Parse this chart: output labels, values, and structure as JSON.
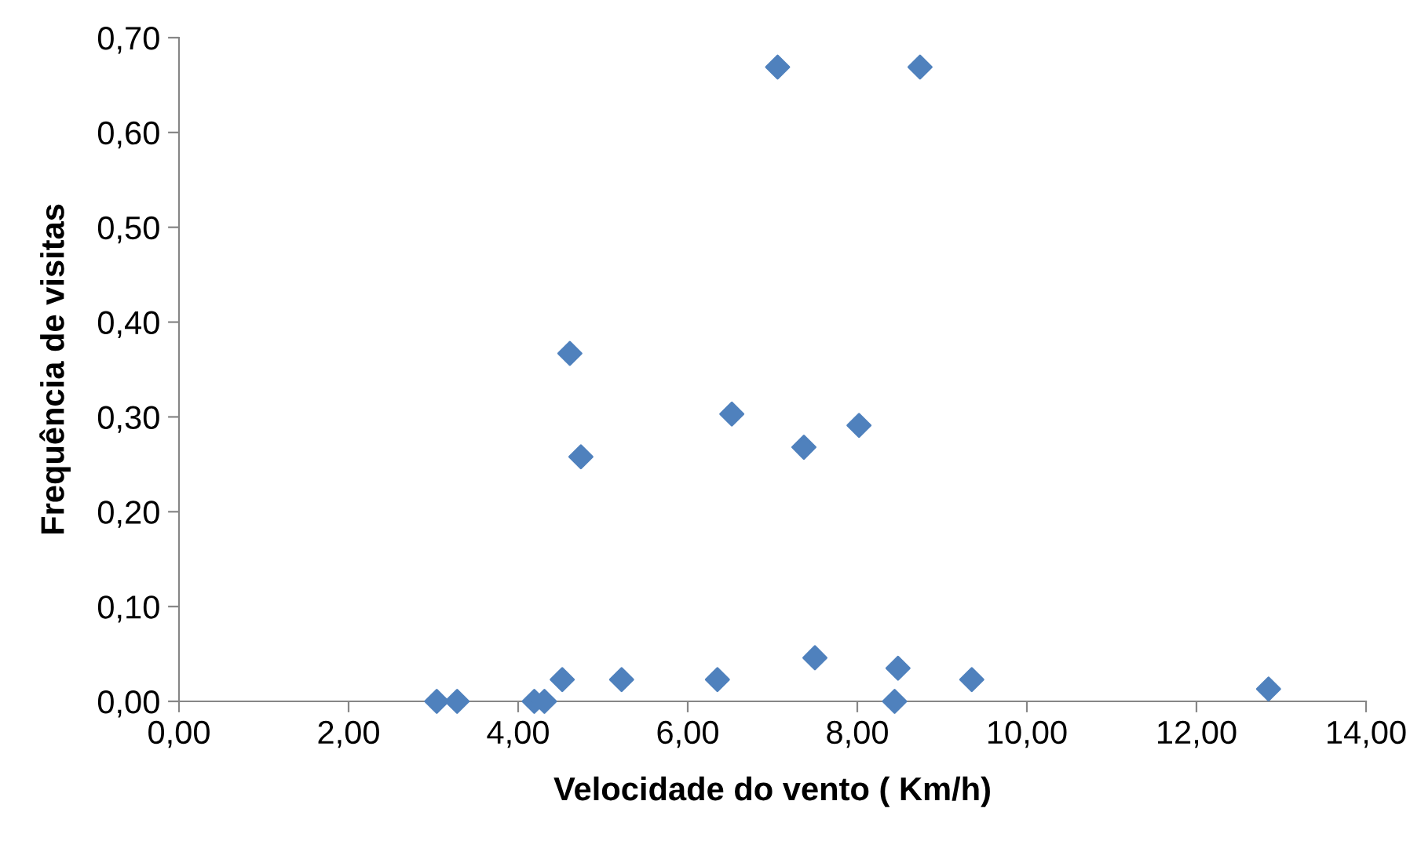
{
  "chart_data": {
    "type": "scatter",
    "xlabel": "Velocidade do vento ( Km/h)",
    "ylabel": "Frequência de visitas",
    "x": [
      3.04,
      3.28,
      4.19,
      4.31,
      4.52,
      4.61,
      4.74,
      5.22,
      6.35,
      6.52,
      7.06,
      7.37,
      7.5,
      8.02,
      8.44,
      8.48,
      8.74,
      9.35,
      12.85
    ],
    "series": [
      {
        "color": "#4f81bd",
        "values": [
          0,
          0,
          0,
          0,
          0.023,
          0.367,
          0.258,
          0.023,
          0.023,
          0.303,
          0.669,
          0.268,
          0.046,
          0.291,
          0,
          0.035,
          0.669,
          0.023,
          0.013
        ]
      }
    ],
    "xlim": [
      0,
      14
    ],
    "xticks": [
      {
        "value": 0,
        "label": "0,00"
      },
      {
        "value": 2,
        "label": "2,00"
      },
      {
        "value": 4,
        "label": "4,00"
      },
      {
        "value": 6,
        "label": "6,00"
      },
      {
        "value": 8,
        "label": "8,00"
      },
      {
        "value": 10,
        "label": "10,00"
      },
      {
        "value": 12,
        "label": "12,00"
      },
      {
        "value": 14,
        "label": "14,00"
      }
    ],
    "ylim": [
      0,
      0.7
    ],
    "yticks": [
      {
        "value": 0,
        "label": "0,00"
      },
      {
        "value": 0.1,
        "label": "0,10"
      },
      {
        "value": 0.2,
        "label": "0,20"
      },
      {
        "value": 0.3,
        "label": "0,30"
      },
      {
        "value": 0.4,
        "label": "0,40"
      },
      {
        "value": 0.5,
        "label": "0,50"
      },
      {
        "value": 0.6,
        "label": "0,60"
      },
      {
        "value": 0.7,
        "label": "0,70"
      }
    ],
    "marker": "diamond",
    "grid": false,
    "legend": false
  }
}
